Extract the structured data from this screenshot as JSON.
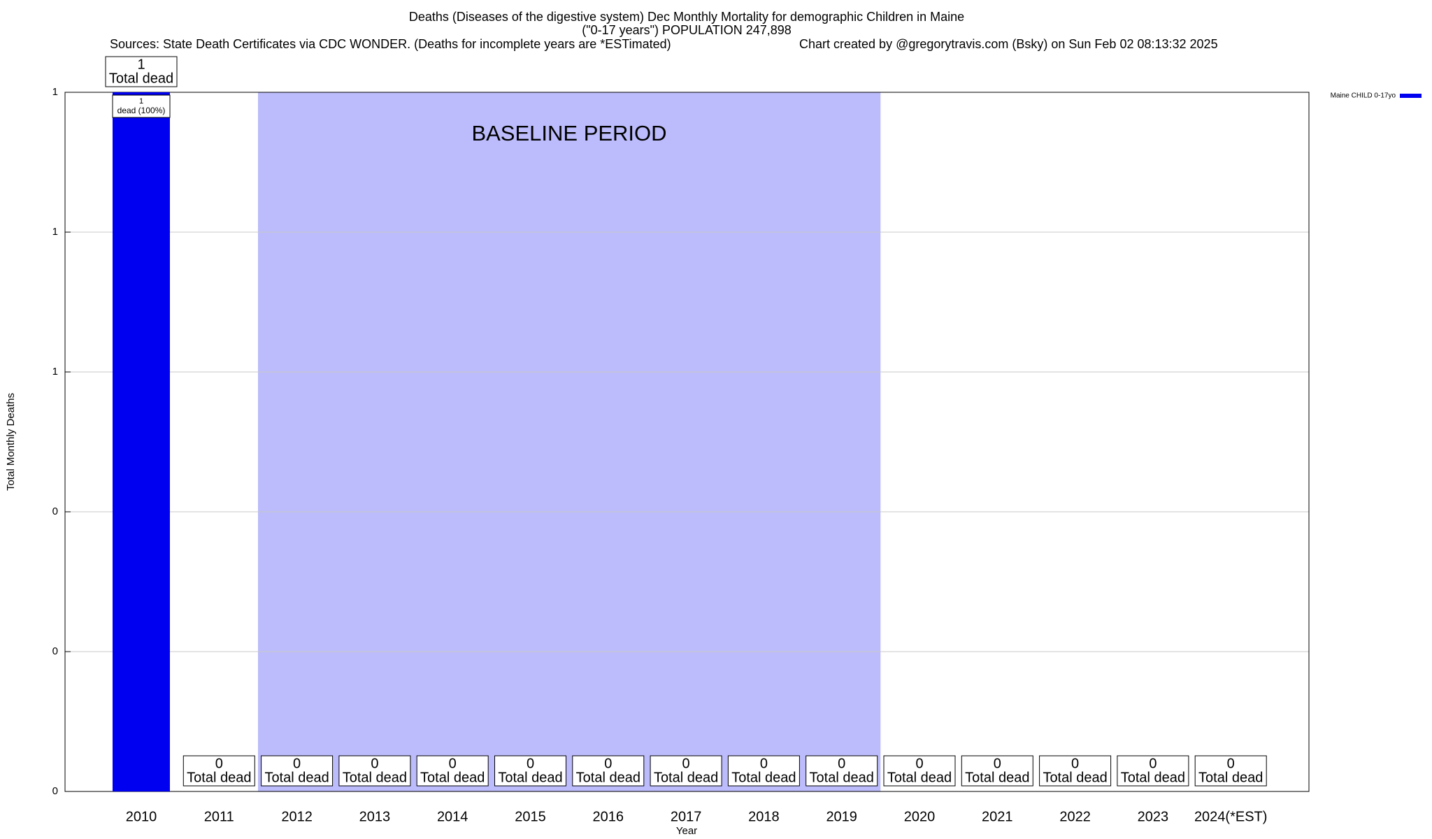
{
  "chart_data": {
    "type": "bar",
    "title": "Deaths (Diseases of the digestive system) Dec Monthly Mortality for demographic Children in Maine",
    "subtitle": "(\"0-17 years\") POPULATION 247,898",
    "sources": "Sources: State Death Certificates via CDC WONDER. (Deaths for incomplete years are *ESTimated)",
    "credit": "Chart created by @gregorytravis.com (Bsky) on Sun Feb 02 08:13:32 2025",
    "x_label": "Year",
    "y_label": "Total Monthly Deaths",
    "categories": [
      "2010",
      "2011",
      "2012",
      "2013",
      "2014",
      "2015",
      "2016",
      "2017",
      "2018",
      "2019",
      "2020",
      "2021",
      "2022",
      "2023",
      "2024(*EST)"
    ],
    "series": [
      {
        "name": "Maine CHILD 0-17yo",
        "color": "#0000f0",
        "values": [
          1,
          0,
          0,
          0,
          0,
          0,
          0,
          0,
          0,
          0,
          0,
          0,
          0,
          0,
          0
        ],
        "inner_labels": [
          "dead (100%)",
          null,
          null,
          null,
          null,
          null,
          null,
          null,
          null,
          null,
          null,
          null,
          null,
          null,
          null
        ]
      }
    ],
    "value_label_caption": "Total dead",
    "baseline": {
      "label": "BASELINE PERIOD",
      "from": "2012",
      "to": "2019",
      "color": "#bcbcfc"
    },
    "ylim": [
      0,
      1
    ],
    "yticks": [
      0,
      {
        "value": 0.2,
        "label": "0"
      },
      {
        "value": 0.4,
        "label": "0"
      },
      {
        "value": 0.6,
        "label": "1"
      },
      {
        "value": 0.8,
        "label": "1"
      },
      1
    ],
    "grid": true,
    "legend": "top-right"
  }
}
